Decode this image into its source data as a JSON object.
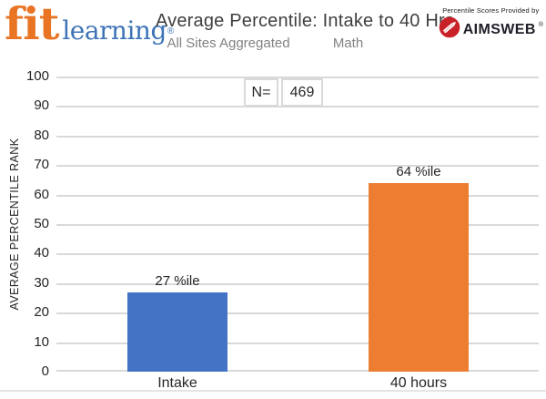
{
  "header": {
    "logo": {
      "word1": "fit",
      "word2": "learning",
      "registered": "®"
    },
    "title": "Average Percentile: Intake to 40 Hrs",
    "subtitle_left": "All Sites Aggregated",
    "subtitle_right": "Math",
    "provider_caption": "Percentile Scores Provided by",
    "provider_brand": "AIMSWEB",
    "provider_registered": "®"
  },
  "sample": {
    "label": "N=",
    "value": "469"
  },
  "chart_data": {
    "type": "bar",
    "title": "Average Percentile: Intake to 40 Hrs",
    "subtitle": "All Sites Aggregated",
    "subject": "Math",
    "n": 469,
    "categories": [
      "Intake",
      "40 hours"
    ],
    "values": [
      27,
      64
    ],
    "bar_labels": [
      "27 %ile",
      "64 %ile"
    ],
    "bar_colors": [
      "#4472C4",
      "#ED7D31"
    ],
    "xlabel": "",
    "ylabel": "AVERAGE PERCENTILE RANK",
    "ylim": [
      0,
      100
    ],
    "yticks": [
      0,
      10,
      20,
      30,
      40,
      50,
      60,
      70,
      80,
      90,
      100
    ],
    "grid": true,
    "legend_position": "none"
  },
  "colors": {
    "bar_intake": "#4472C4",
    "bar_40hours": "#ED7D31",
    "gridline": "#D9D9D9",
    "logo_orange": "#E97524",
    "logo_blue": "#3E74B7",
    "aimsweb_red": "#C92128",
    "title_text": "#3F3F3F",
    "subtitle_text": "#828282"
  }
}
